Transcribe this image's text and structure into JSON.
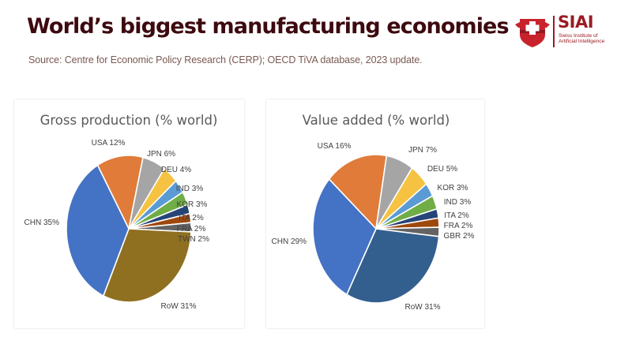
{
  "header": {
    "title": "World’s biggest manufacturing economies",
    "source": "Source: Centre for Economic Policy Research (CERP); OECD TiVA database, 2023 update."
  },
  "logo": {
    "name": "SIAI",
    "line1": "Swiss Institute of",
    "line2": "Artificial Intelligence",
    "icon": "shield-cross-icon",
    "brand_color": "#9b1b23"
  },
  "chart_data": [
    {
      "type": "pie",
      "title": "Gross production  (% world)",
      "categories": [
        "USA",
        "JPN",
        "DEU",
        "IND",
        "KOR",
        "ITA",
        "FRA",
        "TWN",
        "RoW",
        "CHN"
      ],
      "values": [
        12,
        6,
        4,
        3,
        3,
        2,
        2,
        2,
        31,
        35
      ],
      "labels": [
        "USA 12%",
        "JPN 6%",
        "DEU 4%",
        "IND 3%",
        "KOR 3%",
        "ITA 2%",
        "FRA 2%",
        "TWN 2%",
        "RoW 31%",
        "CHN 35%"
      ],
      "colors": [
        "#e07b39",
        "#a5a5a5",
        "#f5c242",
        "#5b9bd5",
        "#70ad47",
        "#264478",
        "#9e480e",
        "#636363",
        "#8f7021",
        "#4472c4"
      ],
      "unit": "% of world"
    },
    {
      "type": "pie",
      "title": "Value added (% world)",
      "categories": [
        "USA",
        "JPN",
        "DEU",
        "KOR",
        "IND",
        "ITA",
        "FRA",
        "GBR",
        "RoW",
        "CHN"
      ],
      "values": [
        16,
        7,
        5,
        3,
        3,
        2,
        2,
        2,
        31,
        29
      ],
      "labels": [
        "USA 16%",
        "JPN 7%",
        "DEU 5%",
        "KOR 3%",
        "IND 3%",
        "ITA 2%",
        "FRA 2%",
        "GBR 2%",
        "RoW 31%",
        "CHN 29%"
      ],
      "colors": [
        "#e07b39",
        "#a5a5a5",
        "#f5c242",
        "#5b9bd5",
        "#70ad47",
        "#264478",
        "#9e480e",
        "#636363",
        "#335f8f",
        "#4472c4"
      ],
      "unit": "% of world"
    }
  ]
}
